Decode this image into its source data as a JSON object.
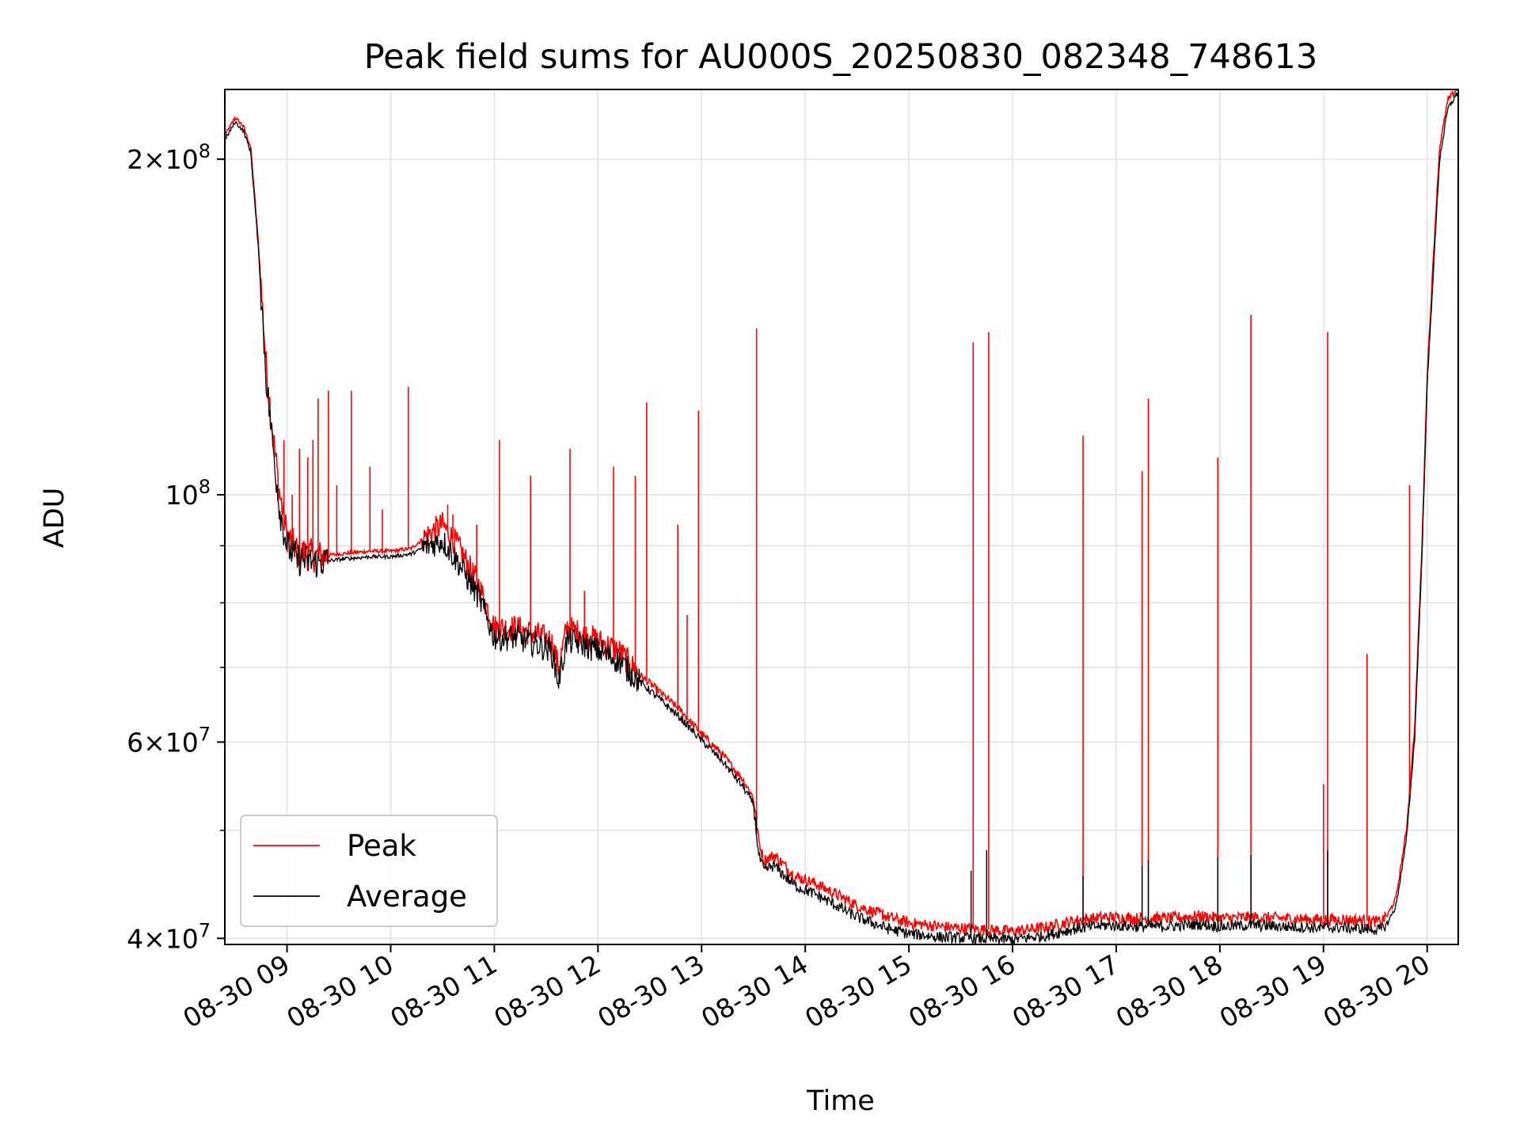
{
  "chart_data": {
    "type": "line",
    "title": "Peak field sums for AU000S_20250830_082348_748613",
    "xlabel": "Time",
    "ylabel": "ADU",
    "yscale": "log",
    "grid": true,
    "legend_position": "lower-left",
    "xlim": [
      8.4,
      20.3
    ],
    "ylim": [
      39500000,
      231000000
    ],
    "x_ticks": [
      9,
      10,
      11,
      12,
      13,
      14,
      15,
      16,
      17,
      18,
      19,
      20
    ],
    "x_tick_labels": [
      "08-30 09",
      "08-30 10",
      "08-30 11",
      "08-30 12",
      "08-30 13",
      "08-30 14",
      "08-30 15",
      "08-30 16",
      "08-30 17",
      "08-30 18",
      "08-30 19",
      "08-30 20"
    ],
    "y_ticks": [
      {
        "value": 40000000,
        "mantissa": "4",
        "exponent": "7"
      },
      {
        "value": 60000000,
        "mantissa": "6",
        "exponent": "7"
      },
      {
        "value": 100000000,
        "mantissa": "",
        "exponent": "8"
      },
      {
        "value": 200000000,
        "mantissa": "2",
        "exponent": "8"
      }
    ],
    "y_minor_ticks": [
      50000000,
      70000000,
      80000000,
      90000000
    ],
    "series": [
      {
        "name": "Peak",
        "color": "#ff0000",
        "x": [
          8.4,
          8.5,
          8.58,
          8.65,
          8.72,
          8.8,
          8.87,
          8.93,
          9.0,
          9.1,
          9.3,
          9.5,
          9.8,
          10.0,
          10.2,
          10.35,
          10.5,
          10.65,
          10.85,
          11.0,
          11.2,
          11.4,
          11.55,
          11.62,
          11.7,
          11.85,
          12.0,
          12.2,
          12.4,
          12.6,
          12.8,
          13.0,
          13.2,
          13.4,
          13.5,
          13.55,
          13.6,
          13.7,
          13.8,
          13.9,
          14.1,
          14.3,
          14.5,
          14.65,
          14.8,
          15.0,
          15.3,
          15.6,
          16.0,
          16.3,
          16.6,
          16.9,
          17.2,
          17.5,
          17.8,
          18.0,
          18.3,
          18.6,
          18.9,
          19.2,
          19.4,
          19.55,
          19.62,
          19.7,
          19.8,
          19.88,
          19.95,
          20.0,
          20.07,
          20.12,
          20.2,
          20.3
        ],
        "y": [
          210000000,
          218000000,
          214000000,
          205000000,
          170000000,
          130000000,
          112000000,
          100000000,
          92000000,
          89000000,
          88000000,
          88500000,
          89000000,
          89000000,
          89500000,
          92000000,
          94000000,
          90000000,
          83000000,
          76000000,
          76000000,
          75000000,
          74000000,
          70000000,
          76000000,
          75000000,
          74000000,
          72500000,
          69000000,
          66500000,
          64000000,
          61000000,
          58500000,
          55500000,
          53500000,
          49000000,
          47000000,
          47500000,
          46500000,
          45500000,
          44800000,
          43800000,
          42800000,
          42300000,
          41800000,
          41300000,
          41000000,
          40800000,
          40600000,
          40900000,
          41500000,
          41800000,
          41700000,
          41700000,
          41900000,
          41700000,
          41800000,
          41700000,
          41600000,
          41600000,
          41500000,
          41400000,
          42000000,
          43500000,
          50000000,
          62000000,
          90000000,
          128000000,
          170000000,
          205000000,
          226000000,
          232000000
        ]
      },
      {
        "name": "Average",
        "color": "#000000",
        "x": [
          8.4,
          8.5,
          8.58,
          8.65,
          8.72,
          8.8,
          8.87,
          8.93,
          9.0,
          9.1,
          9.3,
          9.5,
          9.8,
          10.0,
          10.2,
          10.35,
          10.5,
          10.65,
          10.85,
          11.0,
          11.2,
          11.4,
          11.55,
          11.62,
          11.7,
          11.85,
          12.0,
          12.2,
          12.4,
          12.6,
          12.8,
          13.0,
          13.2,
          13.4,
          13.5,
          13.55,
          13.6,
          13.7,
          13.8,
          13.9,
          14.1,
          14.3,
          14.5,
          14.65,
          14.8,
          15.0,
          15.3,
          15.6,
          16.0,
          16.3,
          16.6,
          16.9,
          17.2,
          17.5,
          17.8,
          18.0,
          18.3,
          18.6,
          18.9,
          19.2,
          19.4,
          19.55,
          19.62,
          19.7,
          19.8,
          19.88,
          19.95,
          20.0,
          20.07,
          20.12,
          20.2,
          20.3
        ],
        "y": [
          208000000,
          216000000,
          212000000,
          203000000,
          168000000,
          127000000,
          109000000,
          97000000,
          90000000,
          87500000,
          87000000,
          87500000,
          88000000,
          88000000,
          88500000,
          90000000,
          91000000,
          87000000,
          81000000,
          74500000,
          74500000,
          73500000,
          72500000,
          68000000,
          74000000,
          73500000,
          72500000,
          71000000,
          68000000,
          65500000,
          63000000,
          60200000,
          57700000,
          54700000,
          52800000,
          47500000,
          46000000,
          46500000,
          45500000,
          44600000,
          43800000,
          42800000,
          41800000,
          41300000,
          40800000,
          40400000,
          40100000,
          40000000,
          39900000,
          40200000,
          40800000,
          41100000,
          41000000,
          41000000,
          41200000,
          41000000,
          41100000,
          41000000,
          40900000,
          40900000,
          40800000,
          40700000,
          41300000,
          42800000,
          49000000,
          60500000,
          88000000,
          125000000,
          165000000,
          200000000,
          222000000,
          230000000
        ]
      }
    ],
    "peak_spikes": [
      {
        "x": 8.87,
        "y": 110000000
      },
      {
        "x": 8.97,
        "y": 112000000
      },
      {
        "x": 9.05,
        "y": 100000000
      },
      {
        "x": 9.12,
        "y": 110000000
      },
      {
        "x": 9.2,
        "y": 108000000
      },
      {
        "x": 9.25,
        "y": 112000000
      },
      {
        "x": 9.3,
        "y": 122000000
      },
      {
        "x": 9.4,
        "y": 124000000
      },
      {
        "x": 9.48,
        "y": 102000000
      },
      {
        "x": 9.62,
        "y": 124000000
      },
      {
        "x": 9.8,
        "y": 106000000
      },
      {
        "x": 9.92,
        "y": 97000000
      },
      {
        "x": 10.17,
        "y": 125000000
      },
      {
        "x": 10.55,
        "y": 98000000
      },
      {
        "x": 10.6,
        "y": 96000000
      },
      {
        "x": 10.83,
        "y": 94000000
      },
      {
        "x": 11.05,
        "y": 112000000
      },
      {
        "x": 11.35,
        "y": 104000000
      },
      {
        "x": 11.73,
        "y": 110000000
      },
      {
        "x": 11.87,
        "y": 82000000
      },
      {
        "x": 12.15,
        "y": 106000000
      },
      {
        "x": 12.36,
        "y": 104000000
      },
      {
        "x": 12.47,
        "y": 121000000
      },
      {
        "x": 12.77,
        "y": 94000000
      },
      {
        "x": 12.86,
        "y": 78000000
      },
      {
        "x": 12.97,
        "y": 119000000
      },
      {
        "x": 13.53,
        "y": 141000000
      },
      {
        "x": 14.75,
        "y": 42500000
      },
      {
        "x": 15.62,
        "y": 137000000
      },
      {
        "x": 15.77,
        "y": 140000000
      },
      {
        "x": 16.68,
        "y": 113000000
      },
      {
        "x": 17.25,
        "y": 105000000
      },
      {
        "x": 17.31,
        "y": 122000000
      },
      {
        "x": 17.98,
        "y": 108000000
      },
      {
        "x": 18.3,
        "y": 145000000
      },
      {
        "x": 19.0,
        "y": 55000000
      },
      {
        "x": 19.04,
        "y": 140000000
      },
      {
        "x": 19.42,
        "y": 72000000
      },
      {
        "x": 19.83,
        "y": 102000000
      }
    ],
    "average_spikes": [
      {
        "x": 15.6,
        "y": 46000000
      },
      {
        "x": 15.75,
        "y": 48000000
      },
      {
        "x": 16.68,
        "y": 45500000
      },
      {
        "x": 17.25,
        "y": 46500000
      },
      {
        "x": 17.31,
        "y": 47000000
      },
      {
        "x": 17.98,
        "y": 47300000
      },
      {
        "x": 18.3,
        "y": 47500000
      },
      {
        "x": 19.04,
        "y": 48000000
      },
      {
        "x": 13.53,
        "y": 52000000
      }
    ]
  }
}
